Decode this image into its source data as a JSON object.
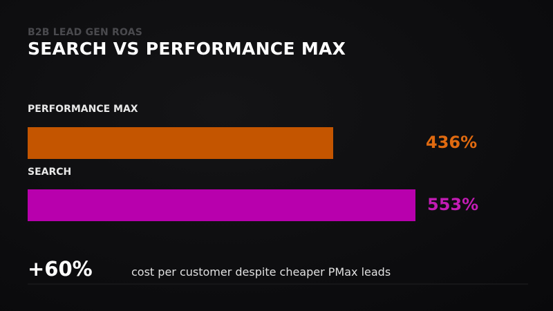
{
  "chart_data": {
    "type": "bar",
    "orientation": "horizontal",
    "kicker": "B2B LEAD GEN ROAS",
    "title": "SEARCH VS PERFORMANCE MAX",
    "categories": [
      "PERFORMANCE MAX",
      "SEARCH"
    ],
    "values": [
      436,
      553
    ],
    "value_labels": [
      "436%",
      "553%"
    ],
    "unit": "%",
    "colors": [
      "#c45500",
      "#b800ad"
    ],
    "value_colors": [
      "#e06a10",
      "#c21cb4"
    ],
    "grid": false,
    "legend": "none"
  },
  "footer": {
    "stat": "+60%",
    "caption": "cost per customer despite cheaper PMax leads"
  }
}
